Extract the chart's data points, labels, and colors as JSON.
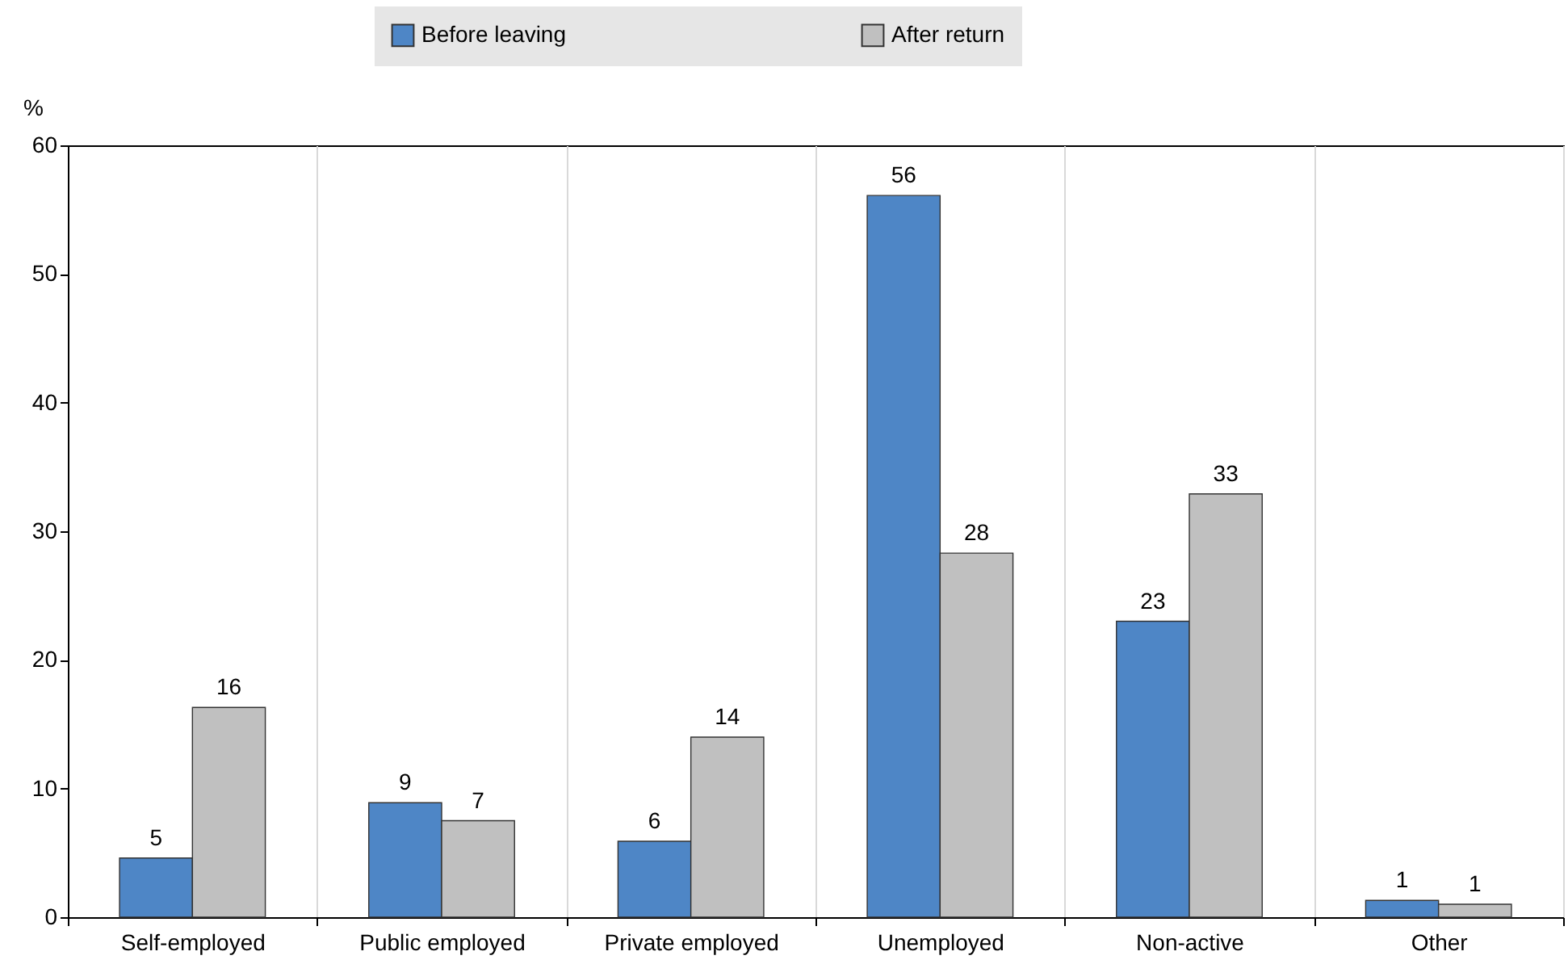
{
  "chart_data": {
    "type": "bar",
    "ylabel": "%",
    "categories": [
      "Self-employed",
      "Public employed",
      "Private employed",
      "Unemployed",
      "Non-active",
      "Other"
    ],
    "series": [
      {
        "name": "Before leaving",
        "color": "#4e86c6",
        "values": [
          4.6,
          8.9,
          5.9,
          56.1,
          23.0,
          1.3
        ],
        "value_labels": [
          "5",
          "9",
          "6",
          "56",
          "23",
          "1"
        ]
      },
      {
        "name": "After return",
        "color": "#c0c0c0",
        "values": [
          16.3,
          7.5,
          14.0,
          28.3,
          32.9,
          1.0
        ],
        "value_labels": [
          "16",
          "7",
          "14",
          "28",
          "33",
          "1"
        ]
      }
    ],
    "ylim": [
      0,
      60
    ],
    "yticks": [
      0,
      10,
      20,
      30,
      40,
      50,
      60
    ],
    "grid": "x",
    "legend": "top"
  }
}
